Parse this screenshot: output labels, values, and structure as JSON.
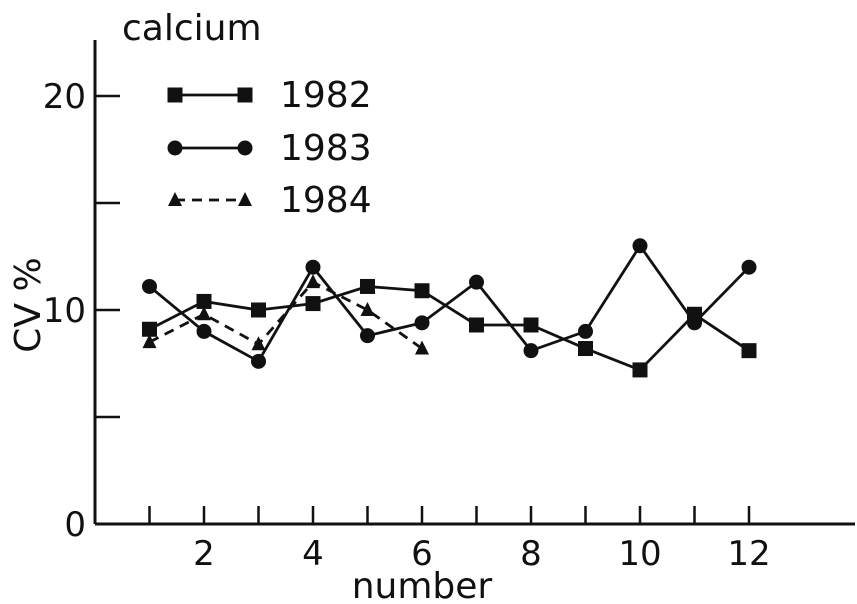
{
  "chart_data": {
    "type": "line",
    "title": "calcium",
    "xlabel": "number",
    "ylabel": "CV %",
    "xlim": [
      0,
      14
    ],
    "ylim": [
      0,
      22
    ],
    "x_ticks": [
      1,
      2,
      3,
      4,
      5,
      6,
      7,
      8,
      9,
      10,
      11,
      12
    ],
    "x_tick_labels": [
      "",
      "2",
      "",
      "4",
      "",
      "6",
      "",
      "8",
      "",
      "10",
      "",
      "12"
    ],
    "y_ticks": [
      0,
      5,
      10,
      15,
      20
    ],
    "y_tick_labels": [
      "0",
      "",
      "10",
      "",
      "20"
    ],
    "grid": false,
    "legend_position": "top-left",
    "series": [
      {
        "name": "1982",
        "marker": "square",
        "dashed": false,
        "x": [
          1,
          2,
          3,
          4,
          5,
          6,
          7,
          8,
          9,
          10,
          11,
          12
        ],
        "y": [
          9.1,
          10.4,
          10.0,
          10.3,
          11.1,
          10.9,
          9.3,
          9.3,
          8.2,
          7.2,
          9.8,
          8.1
        ]
      },
      {
        "name": "1983",
        "marker": "circle",
        "dashed": false,
        "x": [
          1,
          2,
          3,
          4,
          5,
          6,
          7,
          8,
          9,
          10,
          11,
          12
        ],
        "y": [
          11.1,
          9.0,
          7.6,
          12.0,
          8.8,
          9.4,
          11.3,
          8.1,
          9.0,
          13.0,
          9.4,
          12.0
        ]
      },
      {
        "name": "1984",
        "marker": "triangle",
        "dashed": true,
        "x": [
          1,
          2,
          3,
          4,
          5,
          6
        ],
        "y": [
          8.5,
          9.8,
          8.4,
          11.3,
          10.0,
          8.2
        ]
      }
    ]
  }
}
